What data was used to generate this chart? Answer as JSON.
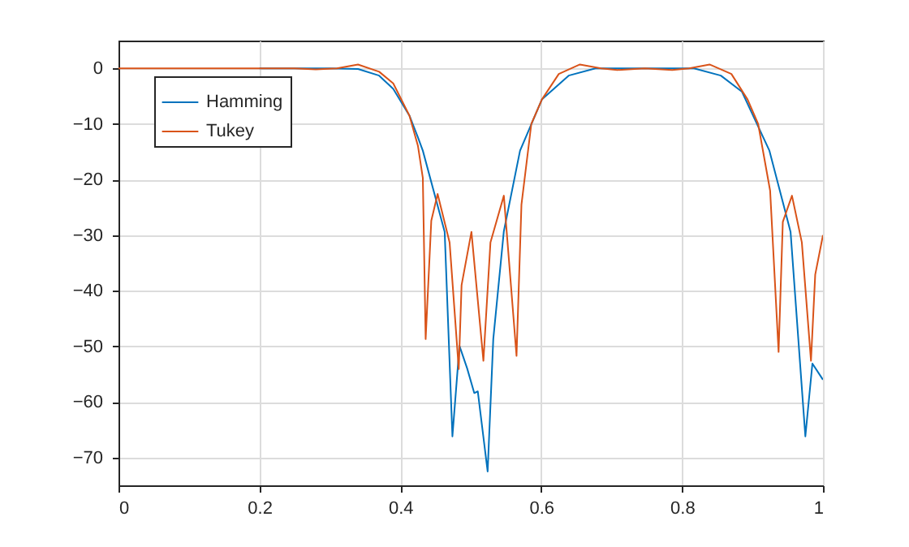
{
  "chart_data": {
    "type": "line",
    "xlim": [
      0,
      1
    ],
    "xticks": [
      0,
      0.2,
      0.4,
      0.6,
      0.8,
      1
    ],
    "ylim": [
      -75,
      5
    ],
    "yticks": [
      -70,
      -60,
      -50,
      -40,
      -30,
      -20,
      -10,
      0
    ],
    "grid": true,
    "legend": "top left",
    "series": [
      {
        "name": "Hamming",
        "color": "#0072bd",
        "x": [
          0.2,
          0.3,
          0.34,
          0.37,
          0.39,
          0.413,
          0.425,
          0.432,
          0.463,
          0.474,
          0.484,
          0.495,
          0.505,
          0.51,
          0.524,
          0.532,
          0.547,
          0.57,
          0.601,
          0.639,
          0.677,
          0.75,
          0.817,
          0.855,
          0.885,
          0.924,
          0.954,
          0.975,
          0.985,
          1
        ],
        "values": [
          0,
          0,
          -0.1,
          -1.3,
          -3.7,
          -8.5,
          -12.4,
          -14.8,
          -29.4,
          -66.2,
          -49.9,
          -54,
          -58.4,
          -58.1,
          -72.5,
          -48.7,
          -29.3,
          -14.8,
          -5.6,
          -1.3,
          0,
          0,
          0,
          -1.3,
          -4.2,
          -14.8,
          -29.4,
          -66.2,
          -53.1,
          -56
        ]
      },
      {
        "name": "Tukey",
        "color": "#d95319",
        "x": [
          0,
          0.1,
          0.2,
          0.25,
          0.28,
          0.31,
          0.34,
          0.37,
          0.39,
          0.413,
          0.425,
          0.432,
          0.436,
          0.444,
          0.453,
          0.47,
          0.483,
          0.487,
          0.501,
          0.518,
          0.528,
          0.547,
          0.565,
          0.572,
          0.586,
          0.601,
          0.625,
          0.655,
          0.685,
          0.708,
          0.747,
          0.786,
          0.81,
          0.839,
          0.87,
          0.893,
          0.908,
          0.925,
          0.937,
          0.943,
          0.956,
          0.97,
          0.983,
          0.989,
          1
        ],
        "values": [
          0,
          0,
          0,
          0,
          -0.2,
          0,
          0.7,
          -0.6,
          -2.7,
          -8.5,
          -13.9,
          -19.7,
          -48.7,
          -27.4,
          -22.6,
          -31.3,
          -54.1,
          -39,
          -29.4,
          -52.6,
          -31.3,
          -22.9,
          -51.7,
          -24.5,
          -10,
          -5.6,
          -1,
          0.7,
          0,
          -0.3,
          0,
          -0.3,
          0,
          0.7,
          -1,
          -5.6,
          -10,
          -22,
          -51,
          -27.6,
          -22.9,
          -31.3,
          -52.6,
          -37.1,
          -30
        ]
      }
    ]
  }
}
